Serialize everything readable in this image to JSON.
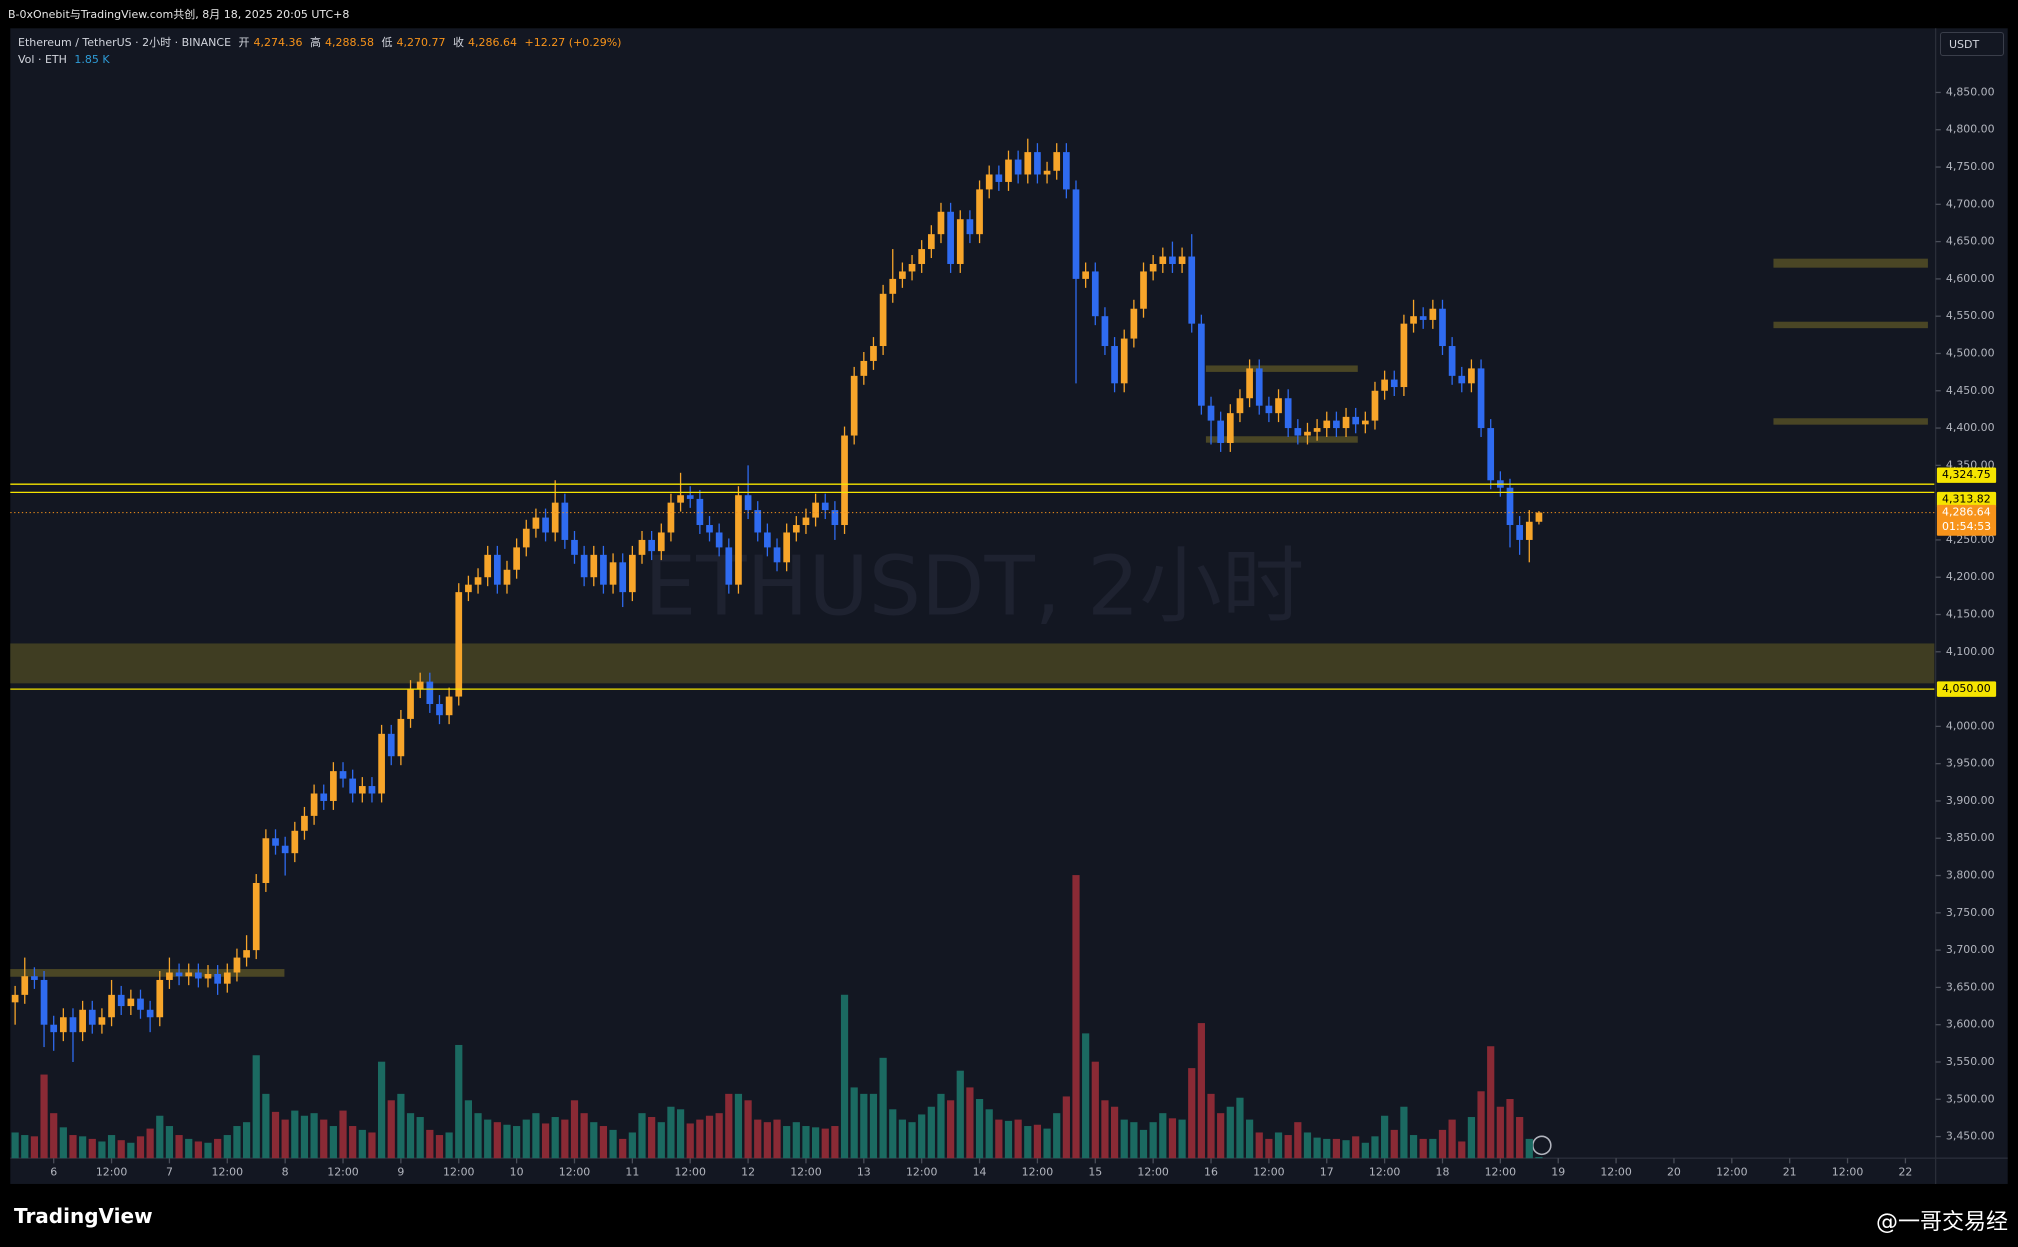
{
  "header": {
    "title": "B-0xOnebit与TradingView.com共创, 8月 18, 2025 20:05 UTC+8"
  },
  "legend": {
    "symbol": "Ethereum / TetherUS · 2小时 · BINANCE",
    "open_label": "开",
    "open": "4,274.36",
    "high_label": "高",
    "high": "4,288.58",
    "low_label": "低",
    "low": "4,270.77",
    "close_label": "收",
    "close": "4,286.64",
    "change": "+12.27 (+0.29%)",
    "volume_name": "Vol · ETH",
    "volume": "1.85 K"
  },
  "currency": "USDT",
  "watermark": "ETHUSDT, 2小时",
  "footer": {
    "brand": "TradingView",
    "author": "@一哥交易经"
  },
  "chart_data": {
    "type": "candlestick",
    "grid": false,
    "up_color": "#f7a52a",
    "down_color": "#2f6bf0",
    "volume_up_color": "#1b6a61",
    "volume_down_color": "#8a2a35",
    "hline_color": "#f5e400",
    "last_price_color": "#f7931a",
    "xlim": [
      -9,
      390
    ],
    "ylim": [
      3421,
      4936
    ],
    "x": [
      -8,
      -6,
      -4,
      -2,
      0,
      2,
      4,
      6,
      8,
      10,
      12,
      14,
      16,
      18,
      20,
      22,
      24,
      26,
      28,
      30,
      32,
      34,
      36,
      38,
      40,
      42,
      44,
      46,
      48,
      50,
      52,
      54,
      56,
      58,
      60,
      62,
      64,
      66,
      68,
      70,
      72,
      74,
      76,
      78,
      80,
      82,
      84,
      86,
      88,
      90,
      92,
      94,
      96,
      98,
      100,
      102,
      104,
      106,
      108,
      110,
      112,
      114,
      116,
      118,
      120,
      122,
      124,
      126,
      128,
      130,
      132,
      134,
      136,
      138,
      140,
      142,
      144,
      146,
      148,
      150,
      152,
      154,
      156,
      158,
      160,
      162,
      164,
      166,
      168,
      170,
      172,
      174,
      176,
      178,
      180,
      182,
      184,
      186,
      188,
      190,
      192,
      194,
      196,
      198,
      200,
      202,
      204,
      206,
      208,
      210,
      212,
      214,
      216,
      218,
      220,
      222,
      224,
      226,
      228,
      230,
      232,
      234,
      236,
      238,
      240,
      242,
      244,
      246,
      248,
      250,
      252,
      254,
      256,
      258,
      260,
      262,
      264,
      266,
      268,
      270,
      272,
      274,
      276,
      278,
      280,
      282,
      284,
      286,
      288,
      290,
      292,
      294,
      296,
      298,
      300,
      302,
      304,
      306,
      308
    ],
    "open": [
      3630,
      3640,
      3665,
      3660,
      3600,
      3590,
      3610,
      3590,
      3620,
      3600,
      3610,
      3640,
      3625,
      3635,
      3620,
      3610,
      3660,
      3670,
      3665,
      3670,
      3662,
      3668,
      3655,
      3670,
      3690,
      3700,
      3790,
      3850,
      3840,
      3830,
      3860,
      3880,
      3910,
      3900,
      3940,
      3930,
      3910,
      3920,
      3910,
      3990,
      3960,
      4010,
      4050,
      4060,
      4030,
      4015,
      4040,
      4180,
      4190,
      4200,
      4230,
      4190,
      4210,
      4240,
      4265,
      4280,
      4260,
      4300,
      4250,
      4230,
      4200,
      4230,
      4190,
      4220,
      4180,
      4230,
      4250,
      4235,
      4260,
      4300,
      4310,
      4305,
      4270,
      4260,
      4240,
      4190,
      4310,
      4290,
      4260,
      4240,
      4220,
      4260,
      4270,
      4280,
      4300,
      4290,
      4270,
      4390,
      4470,
      4490,
      4510,
      4580,
      4600,
      4610,
      4620,
      4640,
      4660,
      4690,
      4620,
      4680,
      4660,
      4720,
      4740,
      4730,
      4760,
      4740,
      4770,
      4740,
      4745,
      4770,
      4720,
      4600,
      4610,
      4550,
      4510,
      4460,
      4520,
      4560,
      4610,
      4620,
      4630,
      4620,
      4630,
      4540,
      4430,
      4410,
      4380,
      4420,
      4440,
      4480,
      4430,
      4420,
      4440,
      4400,
      4390,
      4395,
      4400,
      4410,
      4400,
      4415,
      4405,
      4410,
      4450,
      4465,
      4455,
      4540,
      4550,
      4545,
      4560,
      4510,
      4470,
      4460,
      4480,
      4400,
      4330,
      4320,
      4270,
      4250,
      4274.36
    ],
    "high": [
      3652,
      3690,
      3677,
      3672,
      3612,
      3622,
      3622,
      3632,
      3632,
      3622,
      3660,
      3652,
      3647,
      3647,
      3632,
      3672,
      3690,
      3682,
      3682,
      3682,
      3680,
      3680,
      3682,
      3702,
      3720,
      3802,
      3862,
      3862,
      3852,
      3872,
      3892,
      3922,
      3922,
      3952,
      3952,
      3942,
      3932,
      3932,
      4002,
      4002,
      4022,
      4062,
      4072,
      4072,
      4042,
      4052,
      4192,
      4202,
      4212,
      4242,
      4242,
      4222,
      4252,
      4277,
      4292,
      4292,
      4330,
      4312,
      4262,
      4242,
      4242,
      4242,
      4232,
      4232,
      4242,
      4262,
      4262,
      4272,
      4312,
      4340,
      4322,
      4317,
      4282,
      4272,
      4252,
      4322,
      4350,
      4302,
      4272,
      4252,
      4272,
      4282,
      4292,
      4312,
      4312,
      4302,
      4402,
      4482,
      4502,
      4522,
      4592,
      4640,
      4622,
      4632,
      4652,
      4672,
      4702,
      4702,
      4692,
      4692,
      4732,
      4752,
      4752,
      4772,
      4772,
      4788,
      4782,
      4757,
      4782,
      4782,
      4732,
      4622,
      4622,
      4562,
      4522,
      4532,
      4572,
      4622,
      4632,
      4642,
      4650,
      4642,
      4660,
      4552,
      4442,
      4422,
      4432,
      4452,
      4492,
      4492,
      4442,
      4452,
      4452,
      4412,
      4407,
      4412,
      4422,
      4422,
      4427,
      4427,
      4422,
      4462,
      4477,
      4477,
      4552,
      4572,
      4562,
      4572,
      4572,
      4522,
      4482,
      4492,
      4492,
      4412,
      4342,
      4332,
      4282,
      4290,
      4288.58
    ],
    "low": [
      3600,
      3628,
      3648,
      3570,
      3565,
      3578,
      3550,
      3578,
      3588,
      3588,
      3598,
      3613,
      3613,
      3608,
      3590,
      3598,
      3648,
      3653,
      3653,
      3650,
      3650,
      3640,
      3643,
      3658,
      3678,
      3688,
      3778,
      3828,
      3800,
      3818,
      3848,
      3868,
      3888,
      3888,
      3918,
      3898,
      3898,
      3898,
      3898,
      3948,
      3948,
      3998,
      4038,
      4018,
      4003,
      4003,
      4028,
      4168,
      4178,
      4188,
      4178,
      4178,
      4198,
      4228,
      4253,
      4248,
      4248,
      4238,
      4218,
      4188,
      4188,
      4178,
      4178,
      4160,
      4168,
      4218,
      4223,
      4223,
      4248,
      4288,
      4293,
      4258,
      4248,
      4228,
      4178,
      4178,
      4278,
      4248,
      4228,
      4208,
      4208,
      4248,
      4258,
      4268,
      4278,
      4250,
      4258,
      4378,
      4458,
      4478,
      4498,
      4568,
      4588,
      4598,
      4608,
      4628,
      4648,
      4608,
      4608,
      4648,
      4648,
      4708,
      4718,
      4718,
      4728,
      4728,
      4728,
      4728,
      4733,
      4708,
      4460,
      4588,
      4538,
      4498,
      4448,
      4448,
      4508,
      4548,
      4598,
      4608,
      4608,
      4608,
      4528,
      4418,
      4378,
      4368,
      4368,
      4408,
      4428,
      4418,
      4408,
      4408,
      4388,
      4378,
      4378,
      4383,
      4388,
      4388,
      4388,
      4393,
      4393,
      4398,
      4438,
      4443,
      4443,
      4528,
      4533,
      4533,
      4498,
      4458,
      4448,
      4448,
      4388,
      4318,
      4308,
      4240,
      4230,
      4220,
      4270.77
    ],
    "close": [
      3640,
      3665,
      3660,
      3600,
      3590,
      3610,
      3590,
      3620,
      3600,
      3610,
      3640,
      3625,
      3635,
      3620,
      3610,
      3660,
      3670,
      3665,
      3670,
      3662,
      3668,
      3655,
      3670,
      3690,
      3700,
      3790,
      3850,
      3840,
      3830,
      3860,
      3880,
      3910,
      3900,
      3940,
      3930,
      3910,
      3920,
      3910,
      3990,
      3960,
      4010,
      4050,
      4060,
      4030,
      4015,
      4040,
      4180,
      4190,
      4200,
      4230,
      4190,
      4210,
      4240,
      4265,
      4280,
      4260,
      4300,
      4250,
      4230,
      4200,
      4230,
      4190,
      4220,
      4180,
      4230,
      4250,
      4235,
      4260,
      4300,
      4310,
      4305,
      4270,
      4260,
      4240,
      4190,
      4310,
      4290,
      4260,
      4240,
      4220,
      4260,
      4270,
      4280,
      4300,
      4290,
      4270,
      4390,
      4470,
      4490,
      4510,
      4580,
      4600,
      4610,
      4620,
      4640,
      4660,
      4690,
      4620,
      4680,
      4660,
      4720,
      4740,
      4730,
      4760,
      4740,
      4770,
      4740,
      4745,
      4770,
      4720,
      4600,
      4610,
      4550,
      4510,
      4460,
      4520,
      4560,
      4610,
      4620,
      4630,
      4620,
      4630,
      4540,
      4430,
      4410,
      4380,
      4420,
      4440,
      4480,
      4430,
      4420,
      4440,
      4400,
      4390,
      4395,
      4400,
      4410,
      4400,
      4415,
      4405,
      4410,
      4450,
      4465,
      4455,
      4540,
      4550,
      4545,
      4560,
      4510,
      4470,
      4460,
      4480,
      4400,
      4330,
      4320,
      4270,
      4250,
      4274.36,
      4286.64
    ],
    "volume": [
      40,
      36,
      34,
      130,
      70,
      48,
      36,
      34,
      30,
      26,
      36,
      28,
      24,
      34,
      46,
      66,
      50,
      36,
      30,
      26,
      24,
      30,
      36,
      50,
      56,
      160,
      100,
      72,
      60,
      74,
      66,
      70,
      60,
      50,
      74,
      50,
      44,
      40,
      150,
      90,
      100,
      70,
      64,
      44,
      36,
      40,
      176,
      90,
      70,
      60,
      56,
      52,
      50,
      60,
      70,
      54,
      64,
      60,
      90,
      70,
      56,
      50,
      44,
      30,
      40,
      70,
      64,
      56,
      80,
      76,
      54,
      60,
      66,
      70,
      100,
      100,
      90,
      60,
      56,
      60,
      50,
      56,
      50,
      48,
      46,
      50,
      254,
      110,
      100,
      100,
      156,
      76,
      60,
      56,
      68,
      80,
      100,
      90,
      136,
      110,
      92,
      76,
      60,
      58,
      60,
      50,
      52,
      46,
      70,
      96,
      440,
      194,
      150,
      90,
      80,
      60,
      56,
      44,
      56,
      70,
      62,
      60,
      140,
      210,
      100,
      70,
      80,
      94,
      60,
      40,
      30,
      40,
      36,
      56,
      40,
      32,
      30,
      30,
      28,
      34,
      24,
      34,
      66,
      44,
      80,
      36,
      30,
      30,
      44,
      60,
      26,
      64,
      104,
      174,
      80,
      92,
      64,
      30,
      1.85
    ],
    "yticks": [
      {
        "value": 3450,
        "label": "3,450.00"
      },
      {
        "value": 3500,
        "label": "3,500.00"
      },
      {
        "value": 3550,
        "label": "3,550.00"
      },
      {
        "value": 3600,
        "label": "3,600.00"
      },
      {
        "value": 3650,
        "label": "3,650.00"
      },
      {
        "value": 3700,
        "label": "3,700.00"
      },
      {
        "value": 3750,
        "label": "3,750.00"
      },
      {
        "value": 3800,
        "label": "3,800.00"
      },
      {
        "value": 3850,
        "label": "3,850.00"
      },
      {
        "value": 3900,
        "label": "3,900.00"
      },
      {
        "value": 3950,
        "label": "3,950.00"
      },
      {
        "value": 4000,
        "label": "4,000.00"
      },
      {
        "value": 4100,
        "label": "4,100.00"
      },
      {
        "value": 4150,
        "label": "4,150.00"
      },
      {
        "value": 4200,
        "label": "4,200.00"
      },
      {
        "value": 4250,
        "label": "4,250.00"
      },
      {
        "value": 4350,
        "label": "4,350.00"
      },
      {
        "value": 4400,
        "label": "4,400.00"
      },
      {
        "value": 4450,
        "label": "4,450.00"
      },
      {
        "value": 4500,
        "label": "4,500.00"
      },
      {
        "value": 4550,
        "label": "4,550.00"
      },
      {
        "value": 4600,
        "label": "4,600.00"
      },
      {
        "value": 4650,
        "label": "4,650.00"
      },
      {
        "value": 4700,
        "label": "4,700.00"
      },
      {
        "value": 4750,
        "label": "4,750.00"
      },
      {
        "value": 4800,
        "label": "4,800.00"
      },
      {
        "value": 4850,
        "label": "4,850.00"
      }
    ],
    "xticks": [
      {
        "value": 0,
        "label": "6"
      },
      {
        "value": 12,
        "label": "12:00"
      },
      {
        "value": 24,
        "label": "7"
      },
      {
        "value": 36,
        "label": "12:00"
      },
      {
        "value": 48,
        "label": "8"
      },
      {
        "value": 60,
        "label": "12:00"
      },
      {
        "value": 72,
        "label": "9"
      },
      {
        "value": 84,
        "label": "12:00"
      },
      {
        "value": 96,
        "label": "10"
      },
      {
        "value": 108,
        "label": "12:00"
      },
      {
        "value": 120,
        "label": "11"
      },
      {
        "value": 132,
        "label": "12:00"
      },
      {
        "value": 144,
        "label": "12"
      },
      {
        "value": 156,
        "label": "12:00"
      },
      {
        "value": 168,
        "label": "13"
      },
      {
        "value": 180,
        "label": "12:00"
      },
      {
        "value": 192,
        "label": "14"
      },
      {
        "value": 204,
        "label": "12:00"
      },
      {
        "value": 216,
        "label": "15"
      },
      {
        "value": 228,
        "label": "12:00"
      },
      {
        "value": 240,
        "label": "16"
      },
      {
        "value": 252,
        "label": "12:00"
      },
      {
        "value": 264,
        "label": "17"
      },
      {
        "value": 276,
        "label": "12:00"
      },
      {
        "value": 288,
        "label": "18"
      },
      {
        "value": 300,
        "label": "12:00"
      },
      {
        "value": 312,
        "label": "19"
      },
      {
        "value": 324,
        "label": "12:00"
      },
      {
        "value": 336,
        "label": "20"
      },
      {
        "value": 348,
        "label": "12:00"
      },
      {
        "value": 360,
        "label": "21"
      },
      {
        "value": 372,
        "label": "12:00"
      },
      {
        "value": 384,
        "label": "22"
      }
    ],
    "hlines": [
      {
        "value": 4324.75,
        "label": "4,324.75"
      },
      {
        "value": 4313.82,
        "label": "4,313.82"
      },
      {
        "value": 4050,
        "label": "4,050.00"
      }
    ],
    "last_price": {
      "value": 4286.64,
      "label": "4,286.64"
    },
    "countdown": "01:54:53"
  }
}
